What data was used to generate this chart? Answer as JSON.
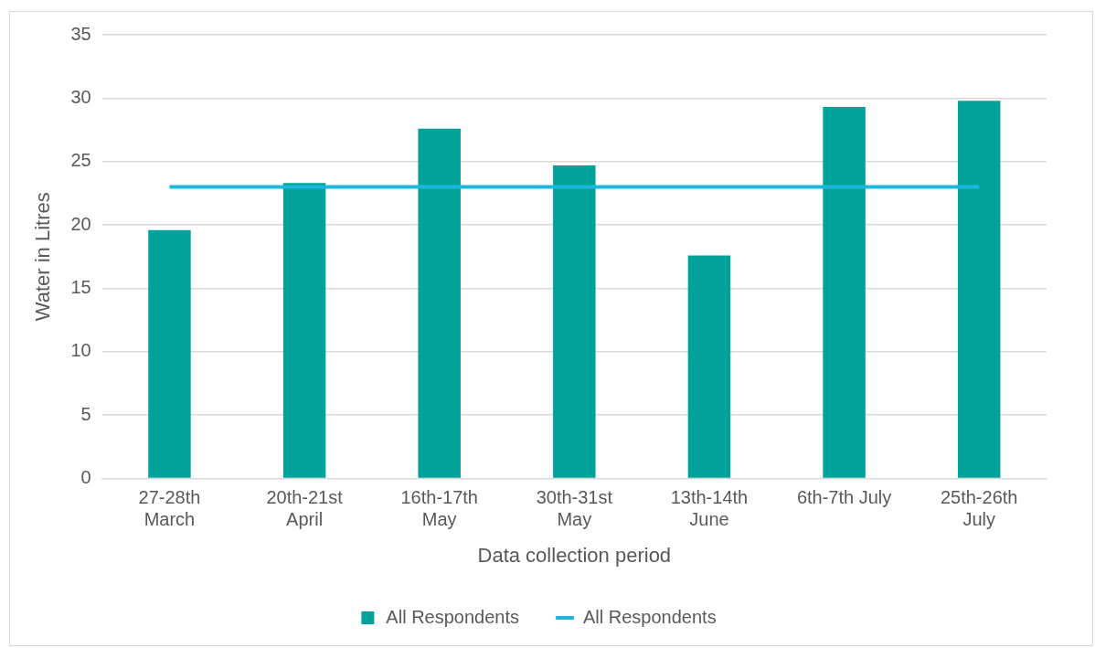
{
  "chart_data": {
    "type": "bar",
    "xlabel": "Data collection period",
    "ylabel": "Water in Litres",
    "categories": [
      [
        "27-28th",
        "March"
      ],
      [
        "20th-21st",
        "April"
      ],
      [
        "16th-17th",
        "May"
      ],
      [
        "30th-31st",
        "May"
      ],
      [
        "13th-14th",
        "June"
      ],
      "6th-7th July",
      [
        "25th-26th",
        "July"
      ]
    ],
    "series": [
      {
        "name": "All Respondents",
        "color": "#00a39a",
        "values": [
          19.6,
          23.3,
          27.6,
          24.7,
          17.6,
          29.3,
          29.8
        ]
      },
      {
        "name": "All Respondents",
        "type": "line",
        "color": "#1cb8dc",
        "values": [
          23,
          23,
          23,
          23,
          23,
          23,
          23
        ]
      }
    ],
    "ylim": [
      0,
      35
    ],
    "yticks": [
      0,
      5,
      10,
      15,
      20,
      25,
      30,
      35
    ],
    "grid": "y",
    "legend": "bottom",
    "marker": "none",
    "line_style": "solid"
  }
}
